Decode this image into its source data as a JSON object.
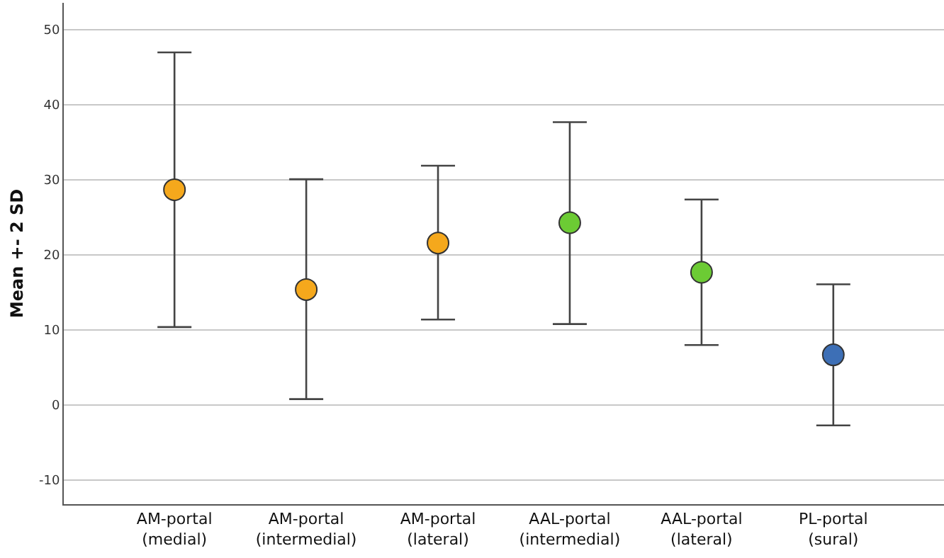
{
  "chart_data": {
    "type": "scatter",
    "ylabel": "Mean +- 2 SD",
    "categories": [
      "AM-portal\n(medial)",
      "AM-portal\n(intermedial)",
      "AM-portal\n(lateral)",
      "AAL-portal\n(intermedial)",
      "AAL-portal\n(lateral)",
      "PL-portal\n(sural)"
    ],
    "values": [
      28.7,
      15.4,
      21.6,
      24.3,
      17.7,
      6.7
    ],
    "errors": [
      [
        10.4,
        47.0
      ],
      [
        0.8,
        30.1
      ],
      [
        11.4,
        31.9
      ],
      [
        10.8,
        37.7
      ],
      [
        8.0,
        27.4
      ],
      [
        -2.7,
        16.1
      ]
    ],
    "colors": [
      "#f5a81c",
      "#f5a81c",
      "#f5a81c",
      "#6ccb34",
      "#6ccb34",
      "#3d6fb6"
    ],
    "ylim": [
      -13.2,
      53.6
    ],
    "yticks": [
      -10,
      0,
      10,
      20,
      30,
      40,
      50
    ],
    "grid": "y",
    "marker": "circle",
    "legend": false
  }
}
